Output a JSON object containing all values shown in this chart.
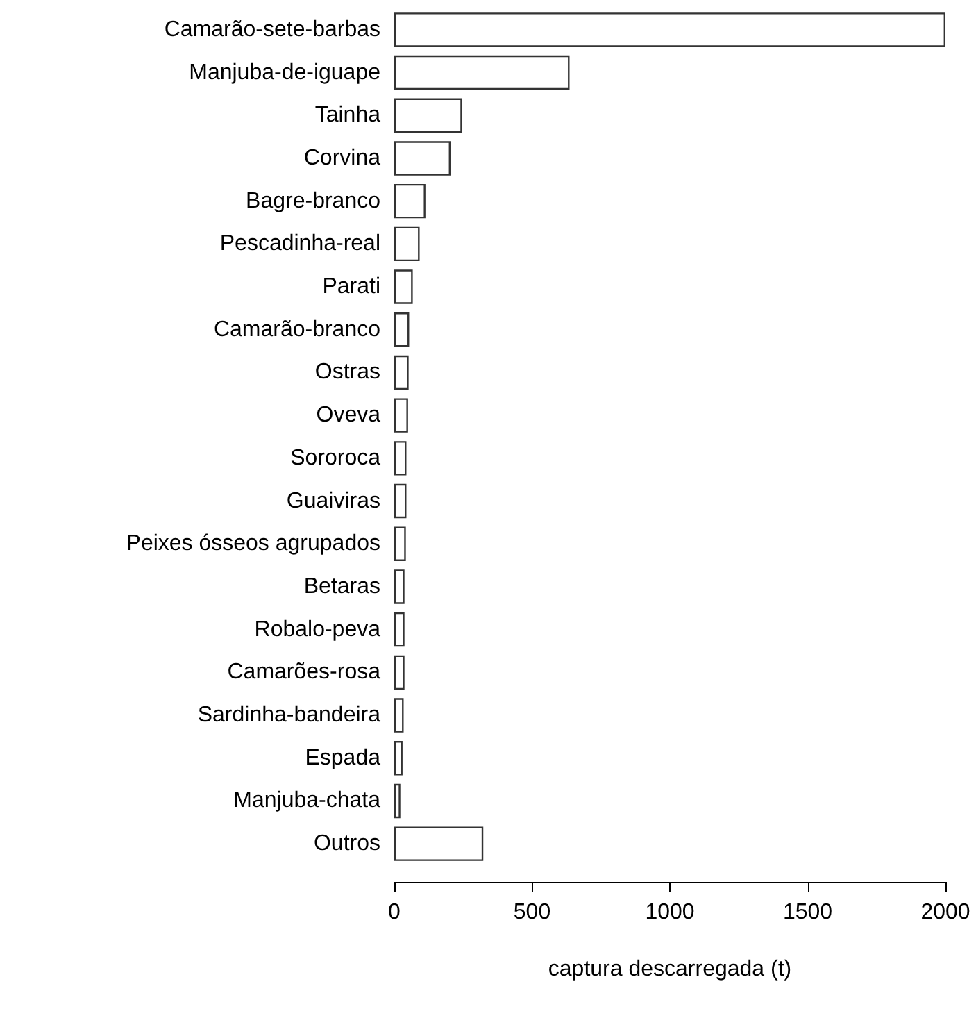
{
  "chart_data": {
    "type": "bar",
    "orientation": "horizontal",
    "xlabel": "captura descarregada (t)",
    "categories": [
      "Camarão-sete-barbas",
      "Manjuba-de-iguape",
      "Tainha",
      "Corvina",
      "Bagre-branco",
      "Pescadinha-real",
      "Parati",
      "Camarão-branco",
      "Ostras",
      "Oveva",
      "Sororoca",
      "Guaiviras",
      "Peixes ósseos agrupados",
      "Betaras",
      "Robalo-peva",
      "Camarões-rosa",
      "Sardinha-bandeira",
      "Espada",
      "Manjuba-chata",
      "Outros"
    ],
    "values": [
      2000,
      636,
      246,
      204,
      113,
      92,
      67,
      54,
      52,
      50,
      44,
      44,
      42,
      37,
      37,
      37,
      34,
      30,
      22,
      323
    ],
    "color": "#ffffff",
    "xlim": [
      0,
      2000
    ],
    "xticks": [
      0,
      500,
      1000,
      1500,
      2000
    ],
    "grid": false
  }
}
